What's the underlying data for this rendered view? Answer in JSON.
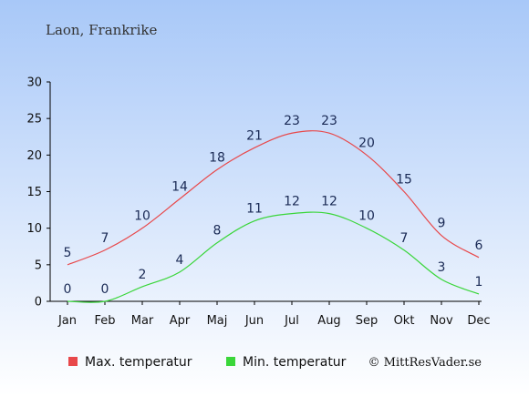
{
  "header": {
    "title": "Laon, Frankrike"
  },
  "credit": "© MittResVader.se",
  "colors": {
    "max": "#e8484a",
    "min": "#3ad63a",
    "background_top": "#a8c8f8",
    "background_bottom": "#ffffff",
    "axis": "#000000",
    "text": "#1a2a55"
  },
  "chart_data": {
    "type": "line",
    "categories": [
      "Jan",
      "Feb",
      "Mar",
      "Apr",
      "Maj",
      "Jun",
      "Jul",
      "Aug",
      "Sep",
      "Okt",
      "Nov",
      "Dec"
    ],
    "series": [
      {
        "name": "Max. temperatur",
        "values": [
          5,
          7,
          10,
          14,
          18,
          21,
          23,
          23,
          20,
          15,
          9,
          6
        ]
      },
      {
        "name": "Min. temperatur",
        "values": [
          0,
          0,
          2,
          4,
          8,
          11,
          12,
          12,
          10,
          7,
          3,
          1
        ]
      }
    ],
    "ylim": [
      0,
      30
    ],
    "yticks": [
      0,
      5,
      10,
      15,
      20,
      25,
      30
    ],
    "grid": false,
    "legend": "bottom"
  }
}
